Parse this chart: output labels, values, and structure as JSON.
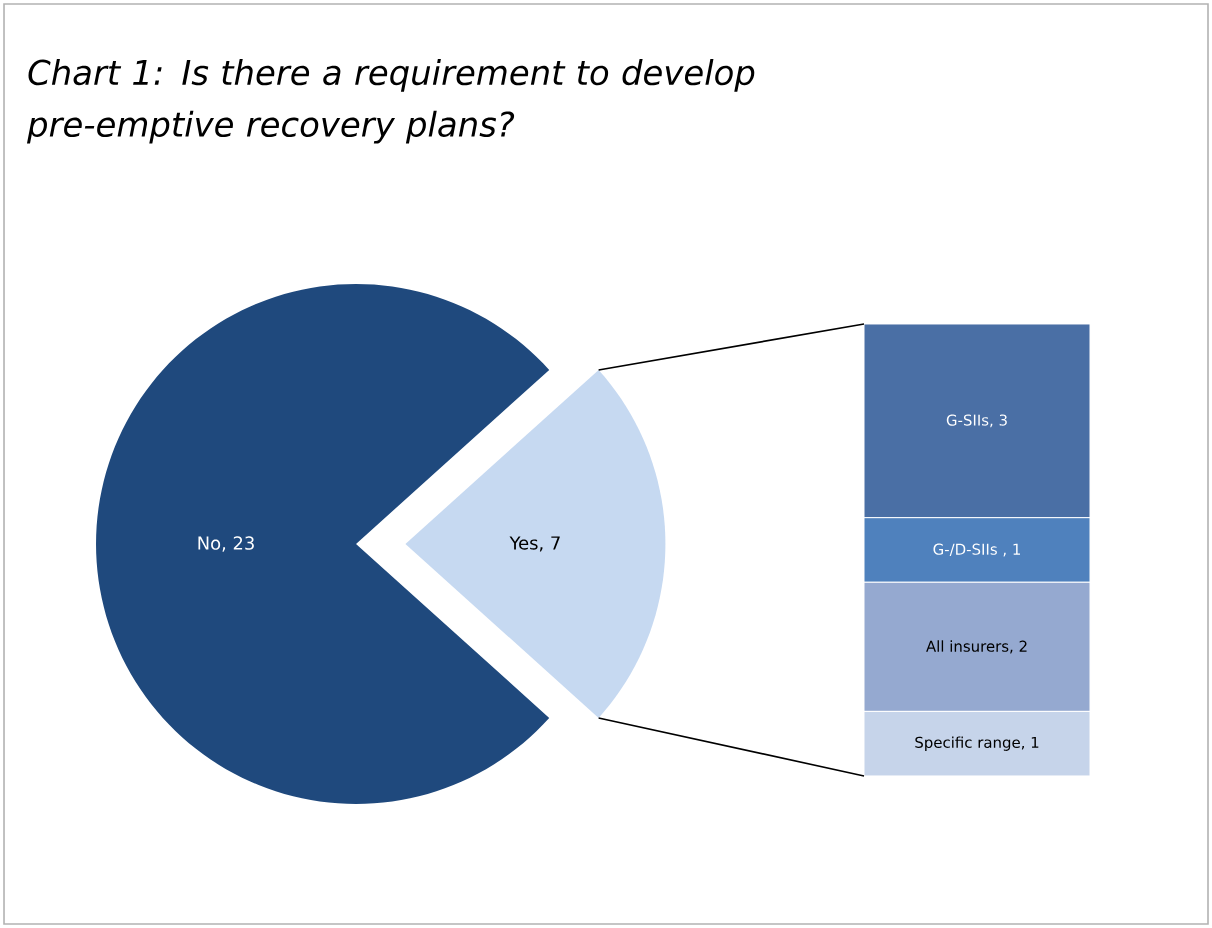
{
  "chart_data": [
    {
      "type": "pie",
      "title": "Chart 1: Is there a requirement to develop pre-emptive recovery plans?",
      "categories": [
        "No",
        "Yes"
      ],
      "values": [
        23,
        7
      ],
      "colors": [
        "#1f497d",
        "#c6d9f1"
      ],
      "value_labels": [
        ", 23",
        ", 7"
      ]
    },
    {
      "type": "bar",
      "stacked": true,
      "categories": [
        null
      ],
      "series": [
        {
          "name": "Specific range",
          "color": "#c6d4ea",
          "values": [
            1
          ],
          "value_labels": [
            ", 1"
          ]
        },
        {
          "name": "All insurers",
          "color": "#95a9d0",
          "values": [
            2
          ],
          "value_labels": [
            ", 2"
          ]
        },
        {
          "name": "G-/D-SIIs",
          "color": "#4f81bd",
          "values": [
            1
          ],
          "value_labels": [
            " , 1"
          ]
        },
        {
          "name": "G-SIIs",
          "color": "#4a6fa5",
          "values": [
            3
          ],
          "value_labels": [
            ", 3"
          ]
        }
      ]
    }
  ]
}
